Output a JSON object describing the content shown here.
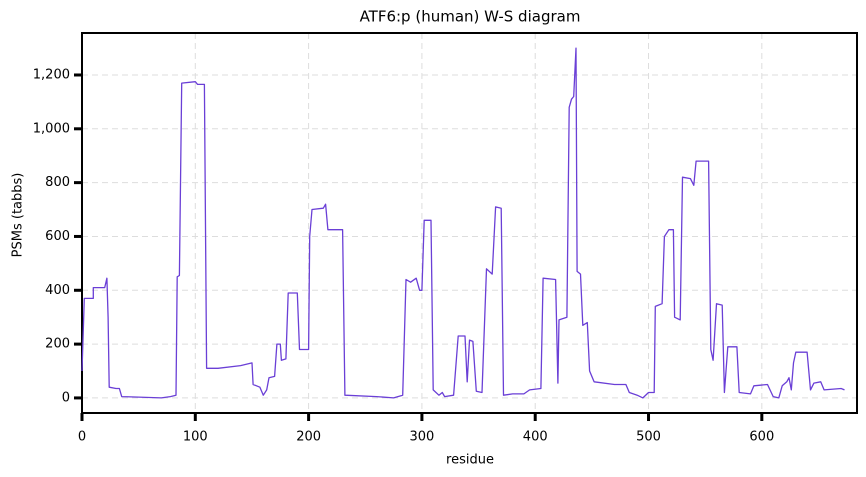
{
  "chart_data": {
    "type": "line",
    "title": "ATF6:p (human) W-S diagram",
    "xlabel": "residue",
    "ylabel": "PSMs (tabbs)",
    "x": [
      0,
      2,
      10,
      10,
      20,
      22,
      23,
      24,
      30,
      33,
      35,
      50,
      70,
      78,
      83,
      84,
      86,
      88,
      100,
      102,
      108,
      110,
      120,
      140,
      150,
      151,
      157,
      160,
      163,
      165,
      170,
      172,
      175,
      176,
      180,
      182,
      190,
      192,
      200,
      201,
      203,
      213,
      215,
      217,
      230,
      232,
      260,
      275,
      283,
      286,
      290,
      295,
      298,
      300,
      302,
      308,
      310,
      315,
      318,
      320,
      328,
      332,
      338,
      340,
      342,
      345,
      348,
      353,
      357,
      362,
      365,
      370,
      372,
      380,
      390,
      395,
      405,
      407,
      418,
      420,
      421,
      428,
      430,
      432,
      434,
      436,
      437,
      440,
      442,
      446,
      448,
      452,
      470,
      480,
      483,
      490,
      495,
      500,
      505,
      506,
      512,
      514,
      518,
      522,
      523,
      528,
      530,
      537,
      540,
      542,
      553,
      555,
      557,
      560,
      565,
      567,
      570,
      578,
      580,
      590,
      593,
      605,
      610,
      615,
      618,
      622,
      624,
      626,
      628,
      630,
      640,
      643,
      646,
      652,
      655,
      670,
      673
    ],
    "series": [
      {
        "name": "ATF6:p",
        "color": "#6a3fd6",
        "values": [
          100,
          370,
          370,
          410,
          410,
          445,
          300,
          40,
          35,
          35,
          5,
          3,
          0,
          5,
          10,
          450,
          455,
          1170,
          1175,
          1165,
          1165,
          110,
          110,
          120,
          130,
          50,
          40,
          10,
          30,
          75,
          80,
          200,
          200,
          140,
          145,
          390,
          390,
          180,
          180,
          600,
          700,
          705,
          720,
          625,
          625,
          10,
          5,
          0,
          10,
          440,
          430,
          445,
          400,
          400,
          660,
          660,
          30,
          10,
          20,
          5,
          10,
          230,
          230,
          60,
          215,
          210,
          25,
          20,
          480,
          460,
          710,
          705,
          10,
          15,
          15,
          30,
          35,
          445,
          440,
          55,
          290,
          300,
          1080,
          1110,
          1120,
          1300,
          470,
          460,
          270,
          280,
          100,
          60,
          50,
          50,
          20,
          10,
          0,
          20,
          20,
          340,
          350,
          600,
          625,
          625,
          300,
          290,
          820,
          815,
          790,
          880,
          880,
          180,
          140,
          350,
          345,
          20,
          190,
          190,
          20,
          15,
          45,
          50,
          5,
          0,
          45,
          60,
          75,
          30,
          130,
          170,
          170,
          30,
          55,
          60,
          30,
          35,
          30
        ]
      }
    ],
    "xlim": [
      0,
      684
    ],
    "ylim": [
      -56,
      1356
    ],
    "xticks": [
      0,
      100,
      200,
      300,
      400,
      500,
      600
    ],
    "yticks": [
      0,
      200,
      400,
      600,
      800,
      {
        "value": 1000,
        "label": "1,000"
      },
      {
        "value": 1200,
        "label": "1,200"
      }
    ],
    "grid": true
  }
}
